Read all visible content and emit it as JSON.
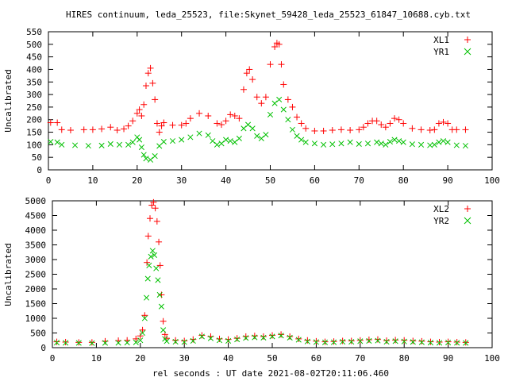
{
  "title": "HIRES continuum, leda_25523, file:Skynet_59428_leda_25523_61847_10688.cyb.txt",
  "xlabel": "rel seconds : UT date 2021-08-02T20:11:06.460",
  "chart_data": [
    {
      "type": "scatter",
      "ylabel": "Uncalibrated",
      "xlim": [
        0,
        100
      ],
      "ylim": [
        0,
        550
      ],
      "xticks": [
        0,
        10,
        20,
        30,
        40,
        50,
        60,
        70,
        80,
        90,
        100
      ],
      "yticks": [
        0,
        50,
        100,
        150,
        200,
        250,
        300,
        350,
        400,
        450,
        500,
        550
      ],
      "grid": false,
      "legend_position": "top-right",
      "series": [
        {
          "name": "XL1",
          "marker": "+",
          "color": "#ff0000",
          "points": [
            [
              0.5,
              188
            ],
            [
              2,
              188
            ],
            [
              3,
              160
            ],
            [
              5,
              158
            ],
            [
              8,
              160
            ],
            [
              10,
              160
            ],
            [
              12,
              163
            ],
            [
              14,
              170
            ],
            [
              15.5,
              158
            ],
            [
              17,
              163
            ],
            [
              18,
              175
            ],
            [
              19,
              195
            ],
            [
              20,
              225
            ],
            [
              20.5,
              240
            ],
            [
              21,
              215
            ],
            [
              21.5,
              260
            ],
            [
              22,
              335
            ],
            [
              22.5,
              385
            ],
            [
              23,
              405
            ],
            [
              23.5,
              345
            ],
            [
              24,
              280
            ],
            [
              24.5,
              185
            ],
            [
              25,
              150
            ],
            [
              25.5,
              175
            ],
            [
              26,
              188
            ],
            [
              28,
              178
            ],
            [
              30,
              178
            ],
            [
              31,
              185
            ],
            [
              32,
              205
            ],
            [
              34,
              225
            ],
            [
              36,
              215
            ],
            [
              38,
              185
            ],
            [
              39,
              180
            ],
            [
              40,
              195
            ],
            [
              41,
              220
            ],
            [
              42,
              215
            ],
            [
              43,
              205
            ],
            [
              44,
              320
            ],
            [
              44.7,
              385
            ],
            [
              45.3,
              400
            ],
            [
              46,
              360
            ],
            [
              47,
              290
            ],
            [
              48,
              265
            ],
            [
              49,
              290
            ],
            [
              50,
              420
            ],
            [
              51,
              490
            ],
            [
              51.5,
              505
            ],
            [
              52,
              500
            ],
            [
              52.5,
              420
            ],
            [
              53,
              340
            ],
            [
              54,
              280
            ],
            [
              55,
              250
            ],
            [
              56,
              210
            ],
            [
              57,
              185
            ],
            [
              58,
              165
            ],
            [
              60,
              155
            ],
            [
              62,
              155
            ],
            [
              64,
              158
            ],
            [
              66,
              160
            ],
            [
              68,
              158
            ],
            [
              70,
              160
            ],
            [
              71,
              170
            ],
            [
              72,
              185
            ],
            [
              73,
              195
            ],
            [
              74,
              195
            ],
            [
              75,
              180
            ],
            [
              76,
              170
            ],
            [
              77,
              185
            ],
            [
              78,
              205
            ],
            [
              79,
              200
            ],
            [
              80,
              185
            ],
            [
              82,
              165
            ],
            [
              84,
              160
            ],
            [
              86,
              158
            ],
            [
              87,
              160
            ],
            [
              88,
              185
            ],
            [
              89,
              190
            ],
            [
              90,
              185
            ],
            [
              91,
              160
            ],
            [
              92,
              160
            ],
            [
              94,
              160
            ]
          ]
        },
        {
          "name": "YR1",
          "marker": "x",
          "color": "#00c000",
          "points": [
            [
              0.5,
              112
            ],
            [
              2,
              110
            ],
            [
              3,
              100
            ],
            [
              6,
              98
            ],
            [
              9,
              96
            ],
            [
              12,
              97
            ],
            [
              14,
              103
            ],
            [
              16,
              100
            ],
            [
              18,
              100
            ],
            [
              19,
              110
            ],
            [
              20,
              130
            ],
            [
              20.5,
              120
            ],
            [
              21,
              90
            ],
            [
              21.5,
              60
            ],
            [
              22,
              45
            ],
            [
              23,
              40
            ],
            [
              24,
              55
            ],
            [
              25,
              95
            ],
            [
              26,
              112
            ],
            [
              28,
              115
            ],
            [
              30,
              120
            ],
            [
              32,
              130
            ],
            [
              34,
              145
            ],
            [
              36,
              138
            ],
            [
              37,
              115
            ],
            [
              38,
              100
            ],
            [
              39,
              105
            ],
            [
              40,
              120
            ],
            [
              41,
              115
            ],
            [
              42,
              110
            ],
            [
              43,
              125
            ],
            [
              44,
              165
            ],
            [
              45,
              180
            ],
            [
              46,
              165
            ],
            [
              47,
              135
            ],
            [
              48,
              125
            ],
            [
              49,
              140
            ],
            [
              50,
              220
            ],
            [
              51,
              265
            ],
            [
              52,
              280
            ],
            [
              53,
              240
            ],
            [
              54,
              200
            ],
            [
              55,
              160
            ],
            [
              56,
              135
            ],
            [
              57,
              120
            ],
            [
              58,
              110
            ],
            [
              60,
              105
            ],
            [
              62,
              100
            ],
            [
              64,
              102
            ],
            [
              66,
              105
            ],
            [
              68,
              110
            ],
            [
              70,
              103
            ],
            [
              72,
              105
            ],
            [
              74,
              110
            ],
            [
              75,
              105
            ],
            [
              76,
              100
            ],
            [
              77,
              112
            ],
            [
              78,
              120
            ],
            [
              79,
              115
            ],
            [
              80,
              110
            ],
            [
              82,
              102
            ],
            [
              84,
              100
            ],
            [
              86,
              98
            ],
            [
              87,
              100
            ],
            [
              88,
              110
            ],
            [
              89,
              115
            ],
            [
              90,
              110
            ],
            [
              92,
              98
            ],
            [
              94,
              96
            ]
          ]
        }
      ]
    },
    {
      "type": "scatter",
      "ylabel": "Uncalibrated",
      "xlim": [
        0,
        100
      ],
      "ylim": [
        0,
        5000
      ],
      "xticks": [
        0,
        10,
        20,
        30,
        40,
        50,
        60,
        70,
        80,
        90,
        100
      ],
      "yticks": [
        0,
        500,
        1000,
        1500,
        2000,
        2500,
        3000,
        3500,
        4000,
        4500,
        5000
      ],
      "grid": false,
      "legend_position": "top-right",
      "series": [
        {
          "name": "XL2",
          "marker": "+",
          "color": "#ff0000",
          "points": [
            [
              1,
              200
            ],
            [
              3,
              190
            ],
            [
              6,
              180
            ],
            [
              9,
              180
            ],
            [
              12,
              220
            ],
            [
              15,
              240
            ],
            [
              17,
              250
            ],
            [
              19,
              300
            ],
            [
              20,
              400
            ],
            [
              20.5,
              600
            ],
            [
              21,
              1100
            ],
            [
              21.5,
              2900
            ],
            [
              21.8,
              3800
            ],
            [
              22.2,
              4400
            ],
            [
              22.6,
              4850
            ],
            [
              23,
              4950
            ],
            [
              23.4,
              4750
            ],
            [
              23.8,
              4300
            ],
            [
              24.2,
              3600
            ],
            [
              24.5,
              2800
            ],
            [
              24.8,
              1800
            ],
            [
              25.2,
              900
            ],
            [
              25.6,
              450
            ],
            [
              26,
              320
            ],
            [
              28,
              250
            ],
            [
              30,
              230
            ],
            [
              32,
              280
            ],
            [
              34,
              420
            ],
            [
              36,
              380
            ],
            [
              38,
              300
            ],
            [
              40,
              280
            ],
            [
              42,
              320
            ],
            [
              44,
              380
            ],
            [
              46,
              400
            ],
            [
              48,
              380
            ],
            [
              50,
              420
            ],
            [
              52,
              450
            ],
            [
              54,
              380
            ],
            [
              56,
              300
            ],
            [
              58,
              250
            ],
            [
              60,
              220
            ],
            [
              62,
              200
            ],
            [
              64,
              210
            ],
            [
              66,
              230
            ],
            [
              68,
              230
            ],
            [
              70,
              250
            ],
            [
              72,
              270
            ],
            [
              74,
              280
            ],
            [
              76,
              240
            ],
            [
              78,
              260
            ],
            [
              80,
              250
            ],
            [
              82,
              230
            ],
            [
              84,
              220
            ],
            [
              86,
              200
            ],
            [
              88,
              190
            ],
            [
              90,
              200
            ],
            [
              92,
              190
            ],
            [
              94,
              180
            ]
          ]
        },
        {
          "name": "YR2",
          "marker": "x",
          "color": "#00c000",
          "points": [
            [
              1,
              170
            ],
            [
              3,
              165
            ],
            [
              6,
              160
            ],
            [
              9,
              155
            ],
            [
              12,
              160
            ],
            [
              15,
              165
            ],
            [
              17,
              170
            ],
            [
              19,
              180
            ],
            [
              20,
              250
            ],
            [
              20.5,
              500
            ],
            [
              21,
              1000
            ],
            [
              21.4,
              1700
            ],
            [
              21.7,
              2350
            ],
            [
              22,
              2800
            ],
            [
              22.4,
              3100
            ],
            [
              22.8,
              3300
            ],
            [
              23.2,
              3150
            ],
            [
              23.6,
              2700
            ],
            [
              24,
              2300
            ],
            [
              24.4,
              1800
            ],
            [
              24.8,
              1400
            ],
            [
              25.2,
              600
            ],
            [
              25.6,
              300
            ],
            [
              26,
              220
            ],
            [
              28,
              200
            ],
            [
              30,
              190
            ],
            [
              32,
              230
            ],
            [
              34,
              380
            ],
            [
              36,
              320
            ],
            [
              38,
              250
            ],
            [
              40,
              230
            ],
            [
              42,
              280
            ],
            [
              44,
              330
            ],
            [
              46,
              350
            ],
            [
              48,
              340
            ],
            [
              50,
              380
            ],
            [
              52,
              410
            ],
            [
              54,
              340
            ],
            [
              56,
              270
            ],
            [
              58,
              210
            ],
            [
              60,
              190
            ],
            [
              62,
              180
            ],
            [
              64,
              185
            ],
            [
              66,
              200
            ],
            [
              68,
              200
            ],
            [
              70,
              220
            ],
            [
              72,
              230
            ],
            [
              74,
              240
            ],
            [
              76,
              200
            ],
            [
              78,
              220
            ],
            [
              80,
              210
            ],
            [
              82,
              195
            ],
            [
              84,
              185
            ],
            [
              86,
              170
            ],
            [
              88,
              165
            ],
            [
              90,
              175
            ],
            [
              92,
              165
            ],
            [
              94,
              160
            ]
          ]
        }
      ]
    }
  ]
}
